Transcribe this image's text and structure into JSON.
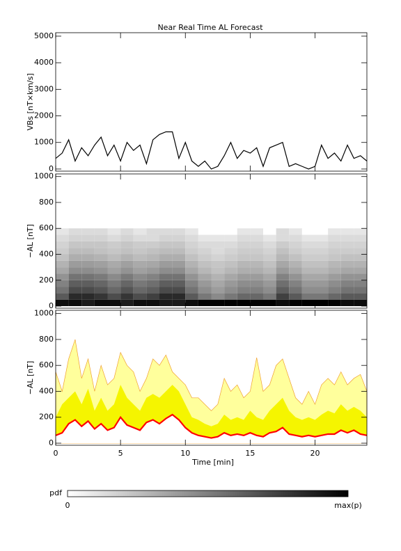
{
  "chart_data": [
    {
      "type": "line",
      "title": "Near Real Time AL Forecast",
      "ylabel": "VBs [nT×km/s]",
      "color": "#000000",
      "x": [
        0,
        0.5,
        1,
        1.5,
        2,
        2.5,
        3,
        3.5,
        4,
        4.5,
        5,
        5.5,
        6,
        6.5,
        7,
        7.5,
        8,
        8.5,
        9,
        9.5,
        10,
        10.5,
        11,
        11.5,
        12,
        12.5,
        13,
        13.5,
        14,
        14.5,
        15,
        15.5,
        16,
        16.5,
        17,
        17.5,
        18,
        18.5,
        19,
        19.5,
        20,
        20.5,
        21,
        21.5,
        22,
        22.5,
        23,
        23.5,
        24
      ],
      "values": [
        400,
        600,
        1100,
        300,
        800,
        500,
        900,
        1200,
        500,
        900,
        300,
        1000,
        700,
        900,
        200,
        1100,
        1300,
        1400,
        1400,
        400,
        1000,
        300,
        100,
        300,
        0,
        100,
        500,
        1000,
        400,
        700,
        600,
        800,
        100,
        800,
        900,
        1000,
        100,
        200,
        100,
        0,
        100,
        900,
        400,
        600,
        300,
        900,
        400,
        500,
        300
      ],
      "xlim": [
        0,
        24
      ],
      "ylim": [
        -80,
        5130
      ],
      "yticks": [
        0,
        1000,
        2000,
        3000,
        4000,
        5000
      ]
    },
    {
      "type": "heatmap",
      "ylabel": "−AL [nT]",
      "time_bins": [
        0,
        1,
        2,
        3,
        4,
        5,
        6,
        7,
        8,
        9,
        10,
        11,
        12,
        13,
        14,
        15,
        16,
        17,
        18,
        19,
        20,
        21,
        22,
        23,
        24
      ],
      "al_bins": [
        0,
        50,
        100,
        150,
        200,
        250,
        300,
        350,
        400,
        450,
        500,
        550,
        600
      ],
      "pdf": [
        [
          0.9,
          0.9,
          0.8,
          0.9,
          0.9,
          0.8,
          0.9,
          0.9,
          0.8,
          0.8,
          0.9,
          1,
          1,
          1,
          1,
          1,
          1,
          0.9,
          1,
          1,
          1,
          1,
          0.9,
          0.9
        ],
        [
          0.42,
          0.7,
          0.7,
          0.63,
          0.49,
          0.63,
          0.49,
          0.56,
          0.7,
          0.7,
          0.42,
          0.28,
          0.21,
          0.28,
          0.35,
          0.35,
          0.28,
          0.56,
          0.42,
          0.28,
          0.28,
          0.35,
          0.42,
          0.42
        ],
        [
          0.3,
          0.5,
          0.5,
          0.45,
          0.35,
          0.45,
          0.35,
          0.4,
          0.5,
          0.5,
          0.3,
          0.2,
          0.15,
          0.2,
          0.25,
          0.25,
          0.2,
          0.4,
          0.3,
          0.2,
          0.2,
          0.25,
          0.3,
          0.3
        ],
        [
          0.24,
          0.4,
          0.4,
          0.36,
          0.28,
          0.36,
          0.28,
          0.32,
          0.4,
          0.4,
          0.24,
          0.16,
          0.12,
          0.16,
          0.2,
          0.2,
          0.16,
          0.32,
          0.24,
          0.16,
          0.16,
          0.2,
          0.24,
          0.24
        ],
        [
          0.18,
          0.3,
          0.3,
          0.27,
          0.21,
          0.27,
          0.21,
          0.24,
          0.3,
          0.3,
          0.18,
          0.12,
          0.09,
          0.12,
          0.15,
          0.15,
          0.12,
          0.24,
          0.18,
          0.12,
          0.12,
          0.15,
          0.18,
          0.18
        ],
        [
          0.12,
          0.2,
          0.2,
          0.18,
          0.14,
          0.18,
          0.14,
          0.16,
          0.2,
          0.2,
          0.12,
          0.08,
          0.06,
          0.08,
          0.1,
          0.1,
          0.08,
          0.16,
          0.12,
          0.08,
          0.08,
          0.1,
          0.12,
          0.12
        ],
        [
          0.09,
          0.15,
          0.15,
          0.14,
          0.11,
          0.14,
          0.11,
          0.12,
          0.15,
          0.15,
          0.09,
          0.06,
          0.05,
          0.06,
          0.08,
          0.08,
          0.06,
          0.12,
          0.09,
          0.06,
          0.06,
          0.08,
          0.09,
          0.09
        ],
        [
          0.06,
          0.1,
          0.1,
          0.09,
          0.07,
          0.09,
          0.07,
          0.08,
          0.1,
          0.1,
          0.06,
          0.04,
          0.03,
          0.04,
          0.05,
          0.05,
          0.04,
          0.08,
          0.06,
          0.04,
          0.04,
          0.05,
          0.06,
          0.06
        ],
        [
          0.04,
          0.07,
          0.07,
          0.06,
          0.05,
          0.06,
          0.05,
          0.06,
          0.07,
          0.07,
          0.04,
          0.03,
          0.02,
          0.03,
          0.04,
          0.04,
          0.03,
          0.06,
          0.04,
          0.03,
          0.03,
          0.04,
          0.04,
          0.04
        ],
        [
          0.03,
          0.05,
          0.05,
          0.05,
          0.04,
          0.05,
          0.04,
          0.04,
          0.05,
          0.05,
          0.03,
          0.02,
          0.02,
          0.02,
          0.03,
          0.03,
          0.02,
          0.04,
          0.03,
          0.02,
          0.02,
          0.03,
          0.03,
          0.03
        ],
        [
          0.02,
          0.03,
          0.03,
          0.03,
          0.02,
          0.03,
          0.02,
          0.02,
          0.03,
          0.03,
          0.02,
          0.01,
          0.01,
          0.01,
          0.02,
          0.02,
          0.01,
          0.02,
          0.02,
          0.01,
          0.01,
          0.02,
          0.02,
          0.02
        ],
        [
          0.01,
          0.02,
          0.02,
          0.02,
          0.01,
          0.02,
          0.01,
          0.02,
          0.02,
          0.02,
          0.01,
          0,
          0,
          0,
          0.01,
          0.01,
          0,
          0.02,
          0.01,
          0,
          0,
          0.01,
          0.01,
          0.01
        ]
      ],
      "xlim": [
        0,
        24
      ],
      "ylim": [
        -16,
        1020
      ],
      "yticks": [
        0,
        200,
        400,
        600,
        800,
        1000
      ],
      "colorbar": {
        "title": "pdf",
        "low": 0,
        "high_label": "max(p)"
      }
    },
    {
      "type": "band",
      "ylabel": "−AL [nT]",
      "xlabel": "Time [min]",
      "x": [
        0,
        0.5,
        1,
        1.5,
        2,
        2.5,
        3,
        3.5,
        4,
        4.5,
        5,
        5.5,
        6,
        6.5,
        7,
        7.5,
        8,
        8.5,
        9,
        9.5,
        10,
        10.5,
        11,
        11.5,
        12,
        12.5,
        13,
        13.5,
        14,
        14.5,
        15,
        15.5,
        16,
        16.5,
        17,
        17.5,
        18,
        18.5,
        19,
        19.5,
        20,
        20.5,
        21,
        21.5,
        22,
        22.5,
        23,
        23.5,
        24
      ],
      "series": [
        {
          "color": "#ffff9c",
          "values": [
            550,
            400,
            650,
            800,
            500,
            650,
            400,
            600,
            450,
            500,
            700,
            600,
            550,
            400,
            500,
            650,
            600,
            680,
            550,
            500,
            450,
            350,
            350,
            300,
            250,
            300,
            500,
            400,
            450,
            350,
            400,
            660,
            400,
            450,
            600,
            650,
            500,
            350,
            300,
            400,
            300,
            450,
            500,
            450,
            550,
            450,
            500,
            530,
            400
          ]
        },
        {
          "color": "#f5f500",
          "values": [
            200,
            300,
            350,
            400,
            300,
            420,
            250,
            350,
            250,
            300,
            450,
            350,
            300,
            250,
            350,
            380,
            350,
            400,
            450,
            400,
            300,
            200,
            180,
            150,
            130,
            150,
            220,
            180,
            200,
            180,
            250,
            200,
            180,
            250,
            300,
            350,
            250,
            200,
            180,
            200,
            180,
            220,
            250,
            230,
            300,
            250,
            280,
            250,
            200
          ]
        },
        {
          "color": "#ff0000",
          "values": [
            60,
            80,
            150,
            180,
            130,
            170,
            110,
            150,
            100,
            120,
            200,
            140,
            120,
            100,
            160,
            180,
            150,
            190,
            220,
            180,
            120,
            80,
            60,
            50,
            40,
            50,
            80,
            60,
            70,
            60,
            80,
            60,
            50,
            80,
            90,
            120,
            70,
            60,
            50,
            60,
            50,
            60,
            70,
            70,
            100,
            80,
            100,
            70,
            60
          ]
        }
      ],
      "xlim": [
        0,
        24
      ],
      "ylim": [
        -16,
        1025
      ],
      "yticks": [
        0,
        200,
        400,
        600,
        800,
        1000
      ],
      "xticks": [
        0,
        5,
        10,
        15,
        20
      ]
    }
  ]
}
